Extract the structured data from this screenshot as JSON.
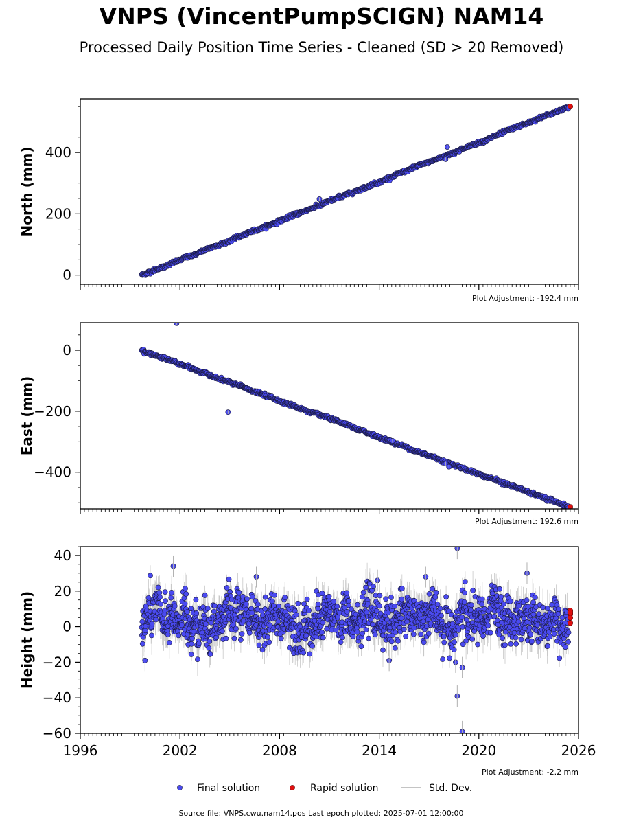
{
  "title": "VNPS (VincentPumpSCIGN) NAM14",
  "subtitle": "Processed Daily Position Time Series - Cleaned (SD > 20 Removed)",
  "source_note": "Source file: VNPS.cwu.nam14.pos  Last epoch plotted: 2025-07-01 12:00:00",
  "legend": {
    "final": "Final solution",
    "rapid": "Rapid solution",
    "std": "Std. Dev."
  },
  "colors": {
    "final": "#4a4af0",
    "rapid": "#e01010",
    "std": "#b0b0b0",
    "edge": "#1a1a40"
  },
  "chart_data": [
    {
      "type": "scatter",
      "ylabel": "North (mm)",
      "adjustment": "Plot Adjustment: -192.4 mm",
      "xlim": [
        1996,
        2026
      ],
      "ylim": [
        -30,
        575
      ],
      "yticks": [
        0,
        200,
        400
      ],
      "yticklabels": [
        "0",
        "200",
        "400"
      ],
      "xticks": [
        1996,
        2002,
        2008,
        2014,
        2020,
        2026
      ],
      "xticklabels": [],
      "trend": {
        "x": [
          1999.7,
          2025.4
        ],
        "y": [
          0,
          548
        ]
      },
      "scatter_sd": 2.5,
      "outliers": [
        {
          "x": 2018.1,
          "y": 418
        },
        {
          "x": 2018.0,
          "y": 378
        },
        {
          "x": 2010.4,
          "y": 248
        }
      ],
      "rapid": {
        "x": [
          2025.5
        ],
        "y": [
          550
        ]
      }
    },
    {
      "type": "scatter",
      "ylabel": "East (mm)",
      "adjustment": "Plot Adjustment: 192.6 mm",
      "xlim": [
        1996,
        2026
      ],
      "ylim": [
        -520,
        90
      ],
      "yticks": [
        -400,
        -200,
        0
      ],
      "yticklabels": [
        "−400",
        "−200",
        "0"
      ],
      "xticks": [
        1996,
        2002,
        2008,
        2014,
        2020,
        2026
      ],
      "xticklabels": [],
      "trend": {
        "x": [
          1999.7,
          2025.4
        ],
        "y": [
          0,
          -513
        ]
      },
      "scatter_sd": 2.5,
      "outliers": [
        {
          "x": 2001.8,
          "y": 88
        },
        {
          "x": 2004.9,
          "y": -203
        },
        {
          "x": 2018.0,
          "y": -372
        },
        {
          "x": 2018.2,
          "y": -382
        },
        {
          "x": 2014.8,
          "y": -297
        }
      ],
      "rapid": {
        "x": [
          2025.5
        ],
        "y": [
          -514
        ]
      }
    },
    {
      "type": "scatter",
      "ylabel": "Height (mm)",
      "adjustment": "Plot Adjustment: -2.2 mm",
      "xlim": [
        1996,
        2026
      ],
      "ylim": [
        -60,
        45
      ],
      "yticks": [
        -60,
        -40,
        -20,
        0,
        20,
        40
      ],
      "yticklabels": [
        "−60",
        "−40",
        "−20",
        "0",
        "20",
        "40"
      ],
      "xticks": [
        1996,
        2002,
        2008,
        2014,
        2020,
        2026
      ],
      "xticklabels": [
        "1996",
        "2002",
        "2008",
        "2014",
        "2020",
        "2026"
      ],
      "trend": {
        "x": [
          1999.7,
          2025.4
        ],
        "y": [
          4,
          4
        ]
      },
      "scatter_sd": 6,
      "outliers": [
        {
          "x": 2001.6,
          "y": 34
        },
        {
          "x": 2018.7,
          "y": 44
        },
        {
          "x": 2022.9,
          "y": 30
        },
        {
          "x": 2018.7,
          "y": -39
        },
        {
          "x": 2019.0,
          "y": -59
        },
        {
          "x": 2019.0,
          "y": -23
        },
        {
          "x": 2018.6,
          "y": -20
        },
        {
          "x": 1999.9,
          "y": -19
        },
        {
          "x": 2013.9,
          "y": 26
        },
        {
          "x": 2016.8,
          "y": 28
        },
        {
          "x": 2006.6,
          "y": 28
        },
        {
          "x": 2014.6,
          "y": -19
        }
      ],
      "rapid": {
        "x": [
          2025.5,
          2025.5,
          2025.5,
          2025.5,
          2025.5
        ],
        "y": [
          9,
          7,
          5,
          2,
          8
        ]
      }
    }
  ]
}
